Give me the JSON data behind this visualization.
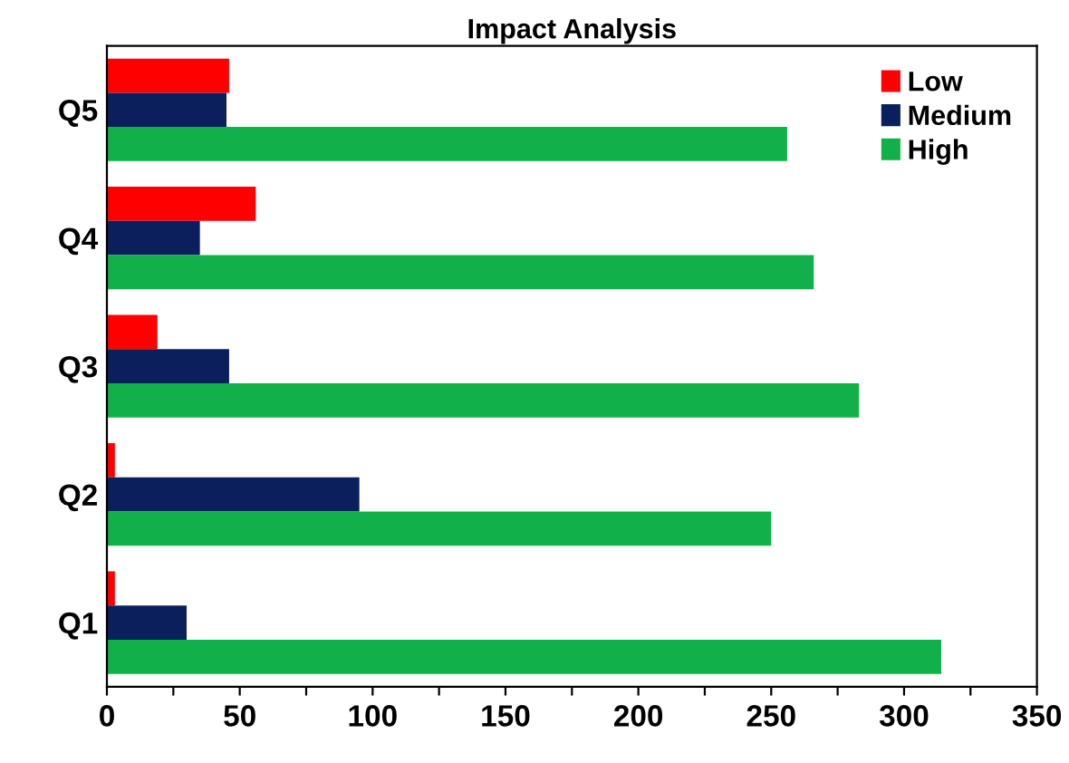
{
  "chart_data": {
    "type": "bar",
    "orientation": "horizontal",
    "title": "Impact Analysis",
    "categories": [
      "Q5",
      "Q4",
      "Q3",
      "Q2",
      "Q1"
    ],
    "series": [
      {
        "name": "Low",
        "color": "#ff0000",
        "values": [
          46,
          56,
          19,
          3,
          3
        ]
      },
      {
        "name": "Medium",
        "color": "#0a1f5c",
        "values": [
          45,
          35,
          46,
          95,
          30
        ]
      },
      {
        "name": "High",
        "color": "#12b04a",
        "values": [
          256,
          266,
          283,
          250,
          314
        ]
      }
    ],
    "xlim": [
      0,
      350
    ],
    "xticks": [
      0,
      {
        "value": 25,
        "label": null
      },
      50,
      {
        "value": 75,
        "label": null
      },
      100,
      {
        "value": 125,
        "label": null
      },
      150,
      {
        "value": 175,
        "label": null
      },
      200,
      {
        "value": 225,
        "label": null
      },
      250,
      {
        "value": 275,
        "label": null
      },
      300,
      {
        "value": 325,
        "label": null
      },
      350
    ],
    "grid": false,
    "legend": "top right"
  }
}
